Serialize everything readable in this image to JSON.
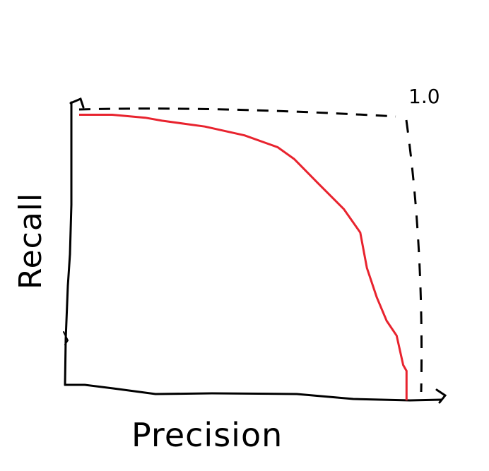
{
  "chart_data": {
    "type": "line",
    "title": "",
    "xlabel": "Precision",
    "ylabel": "Recall",
    "xlim": [
      0,
      1.0
    ],
    "ylim": [
      0,
      1.0
    ],
    "grid": false,
    "tick_labels": [
      "1.0"
    ],
    "colors": {
      "curve": "#e8232e",
      "axes": "#000000",
      "bounds": "#000000"
    },
    "series": [
      {
        "x": [
          0.0,
          0.1,
          0.2,
          0.25,
          0.38,
          0.5,
          0.6,
          0.65,
          0.72,
          0.8,
          0.85,
          0.87,
          0.9,
          0.93,
          0.96,
          0.98,
          0.99,
          0.99
        ],
        "y": [
          0.97,
          0.97,
          0.96,
          0.95,
          0.93,
          0.9,
          0.86,
          0.82,
          0.74,
          0.65,
          0.57,
          0.45,
          0.35,
          0.27,
          0.22,
          0.12,
          0.1,
          0.0
        ]
      }
    ]
  }
}
